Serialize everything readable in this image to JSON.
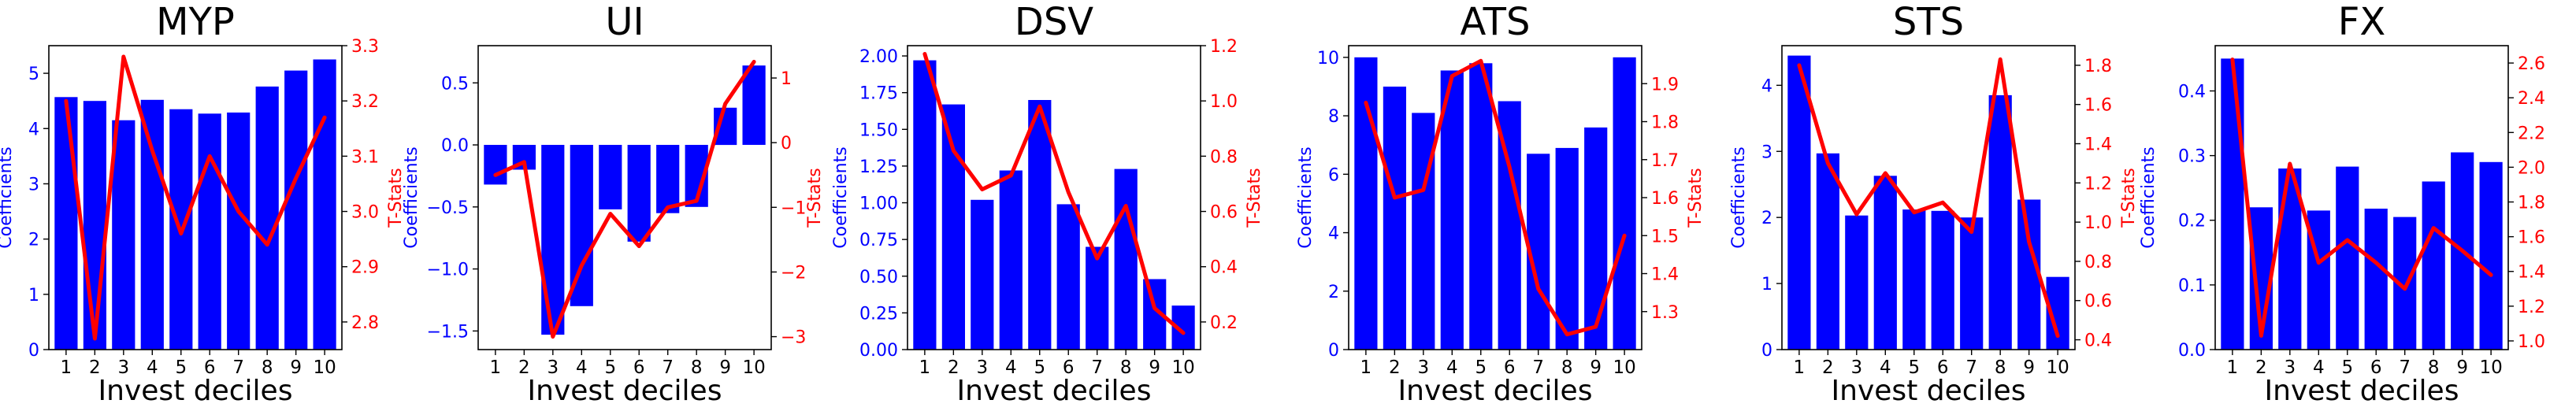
{
  "figure": {
    "bar_color": "#0000ff",
    "line_color": "#ff0000",
    "left_label_color": "#0000ff",
    "right_label_color": "#ff0000"
  },
  "chart_data": [
    {
      "type": "bar",
      "title": "MYP",
      "xlabel": "Invest deciles",
      "ylabel": "Coefficients",
      "y2label": "T-Stats",
      "categories": [
        "1",
        "2",
        "3",
        "4",
        "5",
        "6",
        "7",
        "8",
        "9",
        "10"
      ],
      "series": [
        {
          "values": [
            4.57,
            4.5,
            4.15,
            4.52,
            4.35,
            4.27,
            4.29,
            4.76,
            5.05,
            5.25
          ],
          "kind": "bar",
          "axis": "left"
        },
        {
          "values": [
            3.2,
            2.77,
            3.28,
            3.11,
            2.96,
            3.1,
            3.0,
            2.94,
            3.06,
            3.17
          ],
          "kind": "line",
          "axis": "right"
        }
      ],
      "ylim": [
        0,
        5.5
      ],
      "y2lim": [
        2.75,
        3.3
      ],
      "yticks": [
        "0",
        "1",
        "2",
        "3",
        "4",
        "5"
      ],
      "y2ticks": [
        "2.8",
        "2.9",
        "3.0",
        "3.1",
        "3.2",
        "3.3"
      ],
      "ytick_values": [
        0,
        1,
        2,
        3,
        4,
        5
      ],
      "y2tick_values": [
        2.8,
        2.9,
        3.0,
        3.1,
        3.2,
        3.3
      ]
    },
    {
      "type": "bar",
      "title": "UI",
      "xlabel": "Invest deciles",
      "ylabel": "Coefficients",
      "y2label": "T-Stats",
      "categories": [
        "1",
        "2",
        "3",
        "4",
        "5",
        "6",
        "7",
        "8",
        "9",
        "10"
      ],
      "series": [
        {
          "values": [
            -0.32,
            -0.2,
            -1.53,
            -1.3,
            -0.52,
            -0.78,
            -0.55,
            -0.5,
            0.3,
            0.64
          ],
          "kind": "bar",
          "axis": "left"
        },
        {
          "values": [
            -0.5,
            -0.3,
            -3.0,
            -1.9,
            -1.1,
            -1.6,
            -1.0,
            -0.9,
            0.6,
            1.25
          ],
          "kind": "line",
          "axis": "right"
        }
      ],
      "ylim": [
        -1.65,
        0.8
      ],
      "y2lim": [
        -3.2,
        1.5
      ],
      "yticks": [
        "−1.5",
        "−1.0",
        "−0.5",
        "0.0",
        "0.5"
      ],
      "y2ticks": [
        "−3",
        "−2",
        "−1",
        "0",
        "1"
      ],
      "ytick_values": [
        -1.5,
        -1.0,
        -0.5,
        0.0,
        0.5
      ],
      "y2tick_values": [
        -3,
        -2,
        -1,
        0,
        1
      ]
    },
    {
      "type": "bar",
      "title": "DSV",
      "xlabel": "Invest deciles",
      "ylabel": "Coefficients",
      "y2label": "T-Stats",
      "categories": [
        "1",
        "2",
        "3",
        "4",
        "5",
        "6",
        "7",
        "8",
        "9",
        "10"
      ],
      "series": [
        {
          "values": [
            1.97,
            1.67,
            1.02,
            1.22,
            1.7,
            0.99,
            0.7,
            1.23,
            0.48,
            0.3
          ],
          "kind": "bar",
          "axis": "left"
        },
        {
          "values": [
            1.17,
            0.82,
            0.68,
            0.73,
            0.98,
            0.67,
            0.43,
            0.62,
            0.25,
            0.16
          ],
          "kind": "line",
          "axis": "right"
        }
      ],
      "ylim": [
        0,
        2.07
      ],
      "y2lim": [
        0.1,
        1.2
      ],
      "yticks": [
        "0.00",
        "0.25",
        "0.50",
        "0.75",
        "1.00",
        "1.25",
        "1.50",
        "1.75",
        "2.00"
      ],
      "y2ticks": [
        "0.2",
        "0.4",
        "0.6",
        "0.8",
        "1.0",
        "1.2"
      ],
      "ytick_values": [
        0,
        0.25,
        0.5,
        0.75,
        1.0,
        1.25,
        1.5,
        1.75,
        2.0
      ],
      "y2tick_values": [
        0.2,
        0.4,
        0.6,
        0.8,
        1.0,
        1.2
      ]
    },
    {
      "type": "bar",
      "title": "ATS",
      "xlabel": "Invest deciles",
      "ylabel": "Coefficients",
      "y2label": "T-Stats",
      "categories": [
        "1",
        "2",
        "3",
        "4",
        "5",
        "6",
        "7",
        "8",
        "9",
        "10"
      ],
      "series": [
        {
          "values": [
            10.0,
            9.0,
            8.1,
            9.55,
            9.8,
            8.5,
            6.7,
            6.9,
            7.6,
            10.0
          ],
          "kind": "bar",
          "axis": "left"
        },
        {
          "values": [
            1.85,
            1.6,
            1.62,
            1.92,
            1.96,
            1.68,
            1.36,
            1.24,
            1.26,
            1.5
          ],
          "kind": "line",
          "axis": "right"
        }
      ],
      "ylim": [
        0,
        10.4
      ],
      "y2lim": [
        1.2,
        2.0
      ],
      "yticks": [
        "0",
        "2",
        "4",
        "6",
        "8",
        "10"
      ],
      "y2ticks": [
        "1.3",
        "1.4",
        "1.5",
        "1.6",
        "1.7",
        "1.8",
        "1.9"
      ],
      "ytick_values": [
        0,
        2,
        4,
        6,
        8,
        10
      ],
      "y2tick_values": [
        1.3,
        1.4,
        1.5,
        1.6,
        1.7,
        1.8,
        1.9
      ]
    },
    {
      "type": "bar",
      "title": "STS",
      "xlabel": "Invest deciles",
      "ylabel": "Coefficients",
      "y2label": "T-Stats",
      "categories": [
        "1",
        "2",
        "3",
        "4",
        "5",
        "6",
        "7",
        "8",
        "9",
        "10"
      ],
      "series": [
        {
          "values": [
            4.45,
            2.97,
            2.03,
            2.63,
            2.12,
            2.1,
            2.0,
            3.85,
            2.27,
            1.1
          ],
          "kind": "bar",
          "axis": "left"
        },
        {
          "values": [
            1.8,
            1.3,
            1.04,
            1.25,
            1.05,
            1.1,
            0.95,
            1.83,
            0.9,
            0.42
          ],
          "kind": "line",
          "axis": "right"
        }
      ],
      "ylim": [
        0,
        4.6
      ],
      "y2lim": [
        0.35,
        1.9
      ],
      "yticks": [
        "0",
        "1",
        "2",
        "3",
        "4"
      ],
      "y2ticks": [
        "0.4",
        "0.6",
        "0.8",
        "1.0",
        "1.2",
        "1.4",
        "1.6",
        "1.8"
      ],
      "ytick_values": [
        0,
        1,
        2,
        3,
        4
      ],
      "y2tick_values": [
        0.4,
        0.6,
        0.8,
        1.0,
        1.2,
        1.4,
        1.6,
        1.8
      ]
    },
    {
      "type": "bar",
      "title": "FX",
      "xlabel": "Invest deciles",
      "ylabel": "Coefficients",
      "y2label": "T-Stats",
      "categories": [
        "1",
        "2",
        "3",
        "4",
        "5",
        "6",
        "7",
        "8",
        "9",
        "10"
      ],
      "series": [
        {
          "values": [
            0.45,
            0.22,
            0.28,
            0.215,
            0.283,
            0.218,
            0.205,
            0.26,
            0.305,
            0.29
          ],
          "kind": "bar",
          "axis": "left"
        },
        {
          "values": [
            2.62,
            1.03,
            2.02,
            1.45,
            1.58,
            1.45,
            1.3,
            1.65,
            1.52,
            1.38
          ],
          "kind": "line",
          "axis": "right"
        }
      ],
      "ylim": [
        0,
        0.47
      ],
      "y2lim": [
        0.95,
        2.7
      ],
      "yticks": [
        "0.0",
        "0.1",
        "0.2",
        "0.3",
        "0.4"
      ],
      "y2ticks": [
        "1.0",
        "1.2",
        "1.4",
        "1.6",
        "1.8",
        "2.0",
        "2.2",
        "2.4",
        "2.6"
      ],
      "ytick_values": [
        0,
        0.1,
        0.2,
        0.3,
        0.4
      ],
      "y2tick_values": [
        1.0,
        1.2,
        1.4,
        1.6,
        1.8,
        2.0,
        2.2,
        2.4,
        2.6
      ]
    }
  ]
}
